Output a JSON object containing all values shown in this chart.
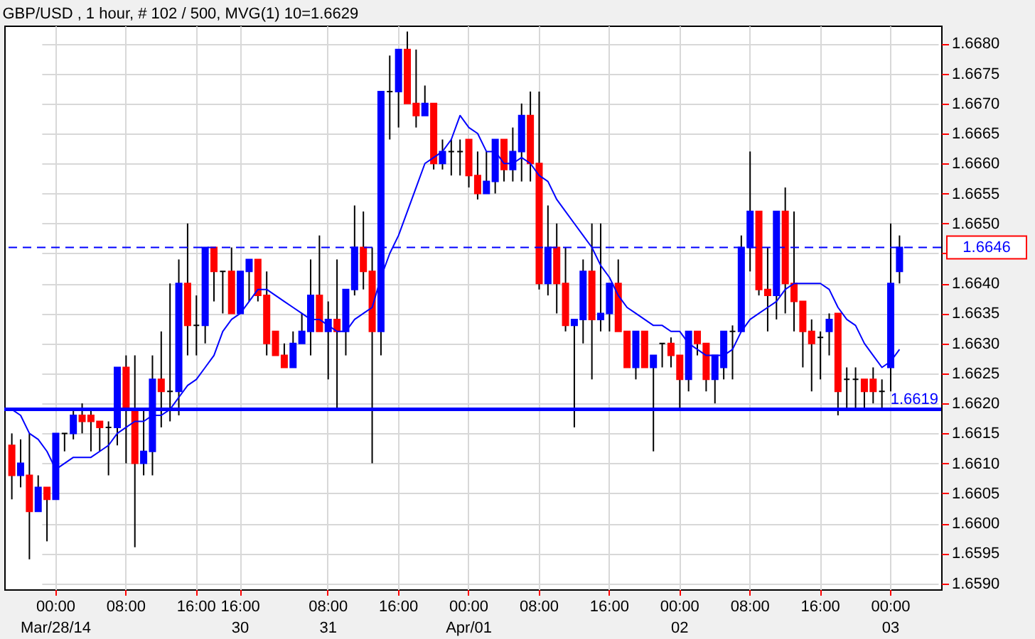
{
  "chart_data": {
    "type": "candlestick",
    "title": "GBP/USD , 1 hour, # 102 / 500, MVG(1) 10=1.6629",
    "categories": [
      null,
      null,
      null,
      null,
      null,
      "00:00\nMar/28/14",
      null,
      null,
      null,
      null,
      null,
      null,
      null,
      "08:00",
      null,
      null,
      null,
      null,
      null,
      null,
      null,
      "16:00",
      null,
      null,
      null,
      null,
      "16:00\n30",
      null,
      null,
      null,
      null,
      null,
      null,
      null,
      null,
      null,
      "08:00\n31",
      null,
      null,
      null,
      null,
      null,
      null,
      null,
      "16:00",
      null,
      null,
      null,
      null,
      null,
      null,
      null,
      "00:00\nApr/01",
      null,
      null,
      null,
      null,
      null,
      null,
      null,
      "08:00",
      null,
      null,
      null,
      null,
      null,
      null,
      null,
      "16:00",
      null,
      null,
      null,
      null,
      null,
      null,
      null,
      "00:00\n02",
      null,
      null,
      null,
      null,
      null,
      null,
      null,
      "08:00",
      null,
      null,
      null,
      null,
      null,
      null,
      null,
      "16:00",
      null,
      null,
      null,
      null,
      null,
      null,
      null,
      "00:00\n03",
      null
    ],
    "ohlc": [
      [
        1.6613,
        1.6615,
        1.6604,
        1.6608
      ],
      [
        1.6608,
        1.6614,
        1.6606,
        1.661
      ],
      [
        1.6608,
        1.6615,
        1.6594,
        1.6602
      ],
      [
        1.6602,
        1.6608,
        1.6602,
        1.6606
      ],
      [
        1.6606,
        1.6606,
        1.6597,
        1.6604
      ],
      [
        1.6604,
        1.6615,
        1.6604,
        1.6615
      ],
      [
        1.6615,
        1.6615,
        1.6612,
        1.6615
      ],
      [
        1.6615,
        1.6619,
        1.6614,
        1.6618
      ],
      [
        1.6618,
        1.662,
        1.6615,
        1.6617
      ],
      [
        1.6618,
        1.6619,
        1.6612,
        1.6617
      ],
      [
        1.6617,
        1.6617,
        1.6612,
        1.6616
      ],
      [
        1.6616,
        1.6617,
        1.6608,
        1.6616
      ],
      [
        1.6616,
        1.6626,
        1.6613,
        1.6626
      ],
      [
        1.6626,
        1.6628,
        1.661,
        1.6619
      ],
      [
        1.6619,
        1.6628,
        1.6596,
        1.661
      ],
      [
        1.661,
        1.6619,
        1.6608,
        1.6612
      ],
      [
        1.6612,
        1.6628,
        1.6608,
        1.6624
      ],
      [
        1.6624,
        1.6632,
        1.6616,
        1.6622
      ],
      [
        1.6622,
        1.664,
        1.6617,
        1.6622
      ],
      [
        1.6622,
        1.6644,
        1.6618,
        1.664
      ],
      [
        1.664,
        1.665,
        1.6628,
        1.6633
      ],
      [
        1.6633,
        1.6638,
        1.6628,
        1.6633
      ],
      [
        1.6633,
        1.6646,
        1.663,
        1.6646
      ],
      [
        1.6646,
        1.6646,
        1.6637,
        1.6642
      ],
      [
        1.6642,
        1.6642,
        1.6635,
        1.6642
      ],
      [
        1.6642,
        1.6646,
        1.6635,
        1.6635
      ],
      [
        1.6635,
        1.6642,
        1.6635,
        1.6642
      ],
      [
        1.6642,
        1.6644,
        1.6637,
        1.6644
      ],
      [
        1.6644,
        1.6644,
        1.6637,
        1.6638
      ],
      [
        1.6638,
        1.6642,
        1.6628,
        1.663
      ],
      [
        1.6632,
        1.6632,
        1.6628,
        1.6628
      ],
      [
        1.6628,
        1.663,
        1.6626,
        1.6626
      ],
      [
        1.6626,
        1.6632,
        1.6626,
        1.663
      ],
      [
        1.663,
        1.6635,
        1.663,
        1.6632
      ],
      [
        1.6632,
        1.6644,
        1.6628,
        1.6638
      ],
      [
        1.6638,
        1.6648,
        1.6632,
        1.6632
      ],
      [
        1.6632,
        1.6637,
        1.6624,
        1.6634
      ],
      [
        1.6634,
        1.6644,
        1.6619,
        1.6632
      ],
      [
        1.6632,
        1.6639,
        1.6628,
        1.6639
      ],
      [
        1.6639,
        1.6653,
        1.6638,
        1.6646
      ],
      [
        1.6646,
        1.6652,
        1.6639,
        1.6642
      ],
      [
        1.6642,
        1.6646,
        1.661,
        1.6632
      ],
      [
        1.6632,
        1.6672,
        1.6628,
        1.6672
      ],
      [
        1.6672,
        1.6678,
        1.6664,
        1.6672
      ],
      [
        1.6672,
        1.6679,
        1.6666,
        1.6679
      ],
      [
        1.6679,
        1.6682,
        1.667,
        1.667
      ],
      [
        1.667,
        1.6679,
        1.6666,
        1.6668
      ],
      [
        1.6668,
        1.6673,
        1.6668,
        1.667
      ],
      [
        1.667,
        1.667,
        1.6659,
        1.666
      ],
      [
        1.666,
        1.6664,
        1.6659,
        1.6662
      ],
      [
        1.6662,
        1.6664,
        1.6658,
        1.6662
      ],
      [
        1.6662,
        1.6664,
        1.6658,
        1.6662
      ],
      [
        1.6664,
        1.6664,
        1.6656,
        1.6658
      ],
      [
        1.6658,
        1.6662,
        1.6654,
        1.6655
      ],
      [
        1.6655,
        1.6662,
        1.6655,
        1.6657
      ],
      [
        1.6657,
        1.6664,
        1.6655,
        1.6664
      ],
      [
        1.6664,
        1.6664,
        1.6657,
        1.6659
      ],
      [
        1.6659,
        1.6666,
        1.6657,
        1.6662
      ],
      [
        1.6662,
        1.667,
        1.6657,
        1.6668
      ],
      [
        1.6668,
        1.6672,
        1.6657,
        1.666
      ],
      [
        1.666,
        1.6672,
        1.6639,
        1.664
      ],
      [
        1.664,
        1.6653,
        1.6638,
        1.6646
      ],
      [
        1.6646,
        1.665,
        1.6635,
        1.664
      ],
      [
        1.664,
        1.6646,
        1.6632,
        1.6633
      ],
      [
        1.6633,
        1.6634,
        1.6616,
        1.6634
      ],
      [
        1.6634,
        1.6644,
        1.663,
        1.6642
      ],
      [
        1.6642,
        1.665,
        1.6624,
        1.6634
      ],
      [
        1.6634,
        1.665,
        1.6632,
        1.6635
      ],
      [
        1.6635,
        1.664,
        1.6632,
        1.664
      ],
      [
        1.664,
        1.6644,
        1.6632,
        1.6632
      ],
      [
        1.6632,
        1.6632,
        1.6626,
        1.6626
      ],
      [
        1.6626,
        1.6632,
        1.6624,
        1.6632
      ],
      [
        1.6632,
        1.6632,
        1.6626,
        1.6626
      ],
      [
        1.6626,
        1.6628,
        1.6612,
        1.6628
      ],
      [
        1.663,
        1.663,
        1.6626,
        1.663
      ],
      [
        1.663,
        1.6631,
        1.6626,
        1.6628
      ],
      [
        1.6628,
        1.6628,
        1.6619,
        1.6624
      ],
      [
        1.6624,
        1.6632,
        1.6622,
        1.6632
      ],
      [
        1.6632,
        1.6632,
        1.6628,
        1.663
      ],
      [
        1.663,
        1.663,
        1.6622,
        1.6624
      ],
      [
        1.6624,
        1.6628,
        1.662,
        1.6628
      ],
      [
        1.6626,
        1.6632,
        1.6624,
        1.6632
      ],
      [
        1.6632,
        1.6633,
        1.6624,
        1.6632
      ],
      [
        1.6632,
        1.6648,
        1.6632,
        1.6646
      ],
      [
        1.6646,
        1.6662,
        1.6642,
        1.6652
      ],
      [
        1.6652,
        1.6652,
        1.6638,
        1.6639
      ],
      [
        1.6639,
        1.6646,
        1.6632,
        1.6638
      ],
      [
        1.6638,
        1.6652,
        1.6634,
        1.6652
      ],
      [
        1.6652,
        1.6656,
        1.6635,
        1.664
      ],
      [
        1.664,
        1.6652,
        1.6632,
        1.6637
      ],
      [
        1.6637,
        1.6637,
        1.6626,
        1.6632
      ],
      [
        1.6632,
        1.6634,
        1.6622,
        1.663
      ],
      [
        1.6631,
        1.6632,
        1.6624,
        1.6631
      ],
      [
        1.6632,
        1.6635,
        1.6628,
        1.6634
      ],
      [
        1.6635,
        1.6635,
        1.6618,
        1.6622
      ],
      [
        1.6624,
        1.6626,
        1.6619,
        1.6624
      ],
      [
        1.6624,
        1.6626,
        1.6619,
        1.6624
      ],
      [
        1.6624,
        1.6624,
        1.6619,
        1.6622
      ],
      [
        1.6624,
        1.6626,
        1.662,
        1.6622
      ],
      [
        1.6622,
        1.6624,
        1.6619,
        1.6622
      ],
      [
        1.6626,
        1.665,
        1.6622,
        1.664
      ],
      [
        1.6642,
        1.6648,
        1.664,
        1.6646
      ]
    ],
    "colors": [
      "#ff0000",
      "#0000ff",
      "#ff0000",
      "#0000ff",
      "#ff0000",
      "#0000ff",
      "#000000",
      "#0000ff",
      "#ff0000",
      "#ff0000",
      "#ff0000",
      "#000000",
      "#0000ff",
      "#ff0000",
      "#ff0000",
      "#0000ff",
      "#0000ff",
      "#ff0000",
      "#000000",
      "#0000ff",
      "#ff0000",
      "#000000",
      "#0000ff",
      "#ff0000",
      "#000000",
      "#ff0000",
      "#0000ff",
      "#0000ff",
      "#ff0000",
      "#ff0000",
      "#ff0000",
      "#ff0000",
      "#0000ff",
      "#0000ff",
      "#0000ff",
      "#ff0000",
      "#0000ff",
      "#ff0000",
      "#0000ff",
      "#0000ff",
      "#ff0000",
      "#ff0000",
      "#0000ff",
      "#000000",
      "#0000ff",
      "#ff0000",
      "#ff0000",
      "#0000ff",
      "#ff0000",
      "#0000ff",
      "#000000",
      "#000000",
      "#ff0000",
      "#ff0000",
      "#0000ff",
      "#0000ff",
      "#ff0000",
      "#0000ff",
      "#0000ff",
      "#ff0000",
      "#ff0000",
      "#0000ff",
      "#ff0000",
      "#ff0000",
      "#0000ff",
      "#0000ff",
      "#ff0000",
      "#0000ff",
      "#0000ff",
      "#ff0000",
      "#ff0000",
      "#0000ff",
      "#ff0000",
      "#0000ff",
      "#000000",
      "#ff0000",
      "#ff0000",
      "#0000ff",
      "#ff0000",
      "#ff0000",
      "#0000ff",
      "#0000ff",
      "#000000",
      "#0000ff",
      "#0000ff",
      "#ff0000",
      "#ff0000",
      "#0000ff",
      "#ff0000",
      "#ff0000",
      "#ff0000",
      "#ff0000",
      "#000000",
      "#0000ff",
      "#ff0000",
      "#000000",
      "#000000",
      "#ff0000",
      "#ff0000",
      "#000000",
      "#0000ff",
      "#0000ff"
    ],
    "series": [
      {
        "type": "line",
        "color": "#0000ff",
        "values": [
          1.6619,
          1.6618,
          1.6615,
          1.6614,
          1.6612,
          1.6609,
          1.661,
          1.6611,
          1.6611,
          1.6611,
          1.6612,
          1.6613,
          1.6615,
          1.6616,
          1.6617,
          1.6617,
          1.6618,
          1.6618,
          1.6619,
          1.6621,
          1.6623,
          1.6624,
          1.6626,
          1.6628,
          1.6632,
          1.6634,
          1.6635,
          1.6637,
          1.6639,
          1.6639,
          1.6638,
          1.6637,
          1.6636,
          1.6635,
          1.6634,
          1.6634,
          1.6633,
          1.6632,
          1.6632,
          1.6634,
          1.6635,
          1.6636,
          1.6641,
          1.6645,
          1.6648,
          1.6652,
          1.6656,
          1.666,
          1.6661,
          1.6662,
          1.6664,
          1.6668,
          1.6666,
          1.6665,
          1.6662,
          1.6662,
          1.666,
          1.666,
          1.6661,
          1.666,
          1.6658,
          1.6657,
          1.6654,
          1.6652,
          1.665,
          1.6648,
          1.6646,
          1.6643,
          1.6641,
          1.6638,
          1.6636,
          1.6635,
          1.6634,
          1.6633,
          1.6633,
          1.6632,
          1.6632,
          1.663,
          1.6629,
          1.6628,
          1.6628,
          1.6628,
          1.6629,
          1.6632,
          1.6634,
          1.6635,
          1.6636,
          1.6637,
          1.6639,
          1.664,
          1.664,
          1.664,
          1.664,
          1.6639,
          1.6636,
          1.6634,
          1.6633,
          1.663,
          1.6628,
          1.6626,
          1.6627,
          1.6629
        ]
      }
    ],
    "ylim": [
      1.6589,
      1.6683
    ],
    "yticks": [
      {
        "value": 1.659,
        "label": "1.6590"
      },
      {
        "value": 1.6595,
        "label": "1.6595"
      },
      {
        "value": 1.66,
        "label": "1.6600"
      },
      {
        "value": 1.6605,
        "label": "1.6605"
      },
      {
        "value": 1.661,
        "label": "1.6610"
      },
      {
        "value": 1.6615,
        "label": "1.6615"
      },
      {
        "value": 1.662,
        "label": "1.6620"
      },
      {
        "value": 1.6625,
        "label": "1.6625"
      },
      {
        "value": 1.663,
        "label": "1.6630"
      },
      {
        "value": 1.6635,
        "label": "1.6635"
      },
      {
        "value": 1.664,
        "label": "1.6640"
      },
      {
        "value": 1.6645,
        "label": null
      },
      {
        "value": 1.665,
        "label": "1.6650"
      },
      {
        "value": 1.6655,
        "label": "1.6655"
      },
      {
        "value": 1.666,
        "label": "1.6660"
      },
      {
        "value": 1.6665,
        "label": "1.6665"
      },
      {
        "value": 1.667,
        "label": "1.6670"
      },
      {
        "value": 1.6675,
        "label": "1.6675"
      },
      {
        "value": 1.668,
        "label": "1.6680"
      }
    ],
    "ref_lines": [
      {
        "axis": "y",
        "value": 1.6646,
        "label": "1.6646",
        "color": "#0000ff",
        "line_style": "dashed"
      },
      {
        "axis": "y",
        "value": 1.6619,
        "label": "1.6619",
        "color": "#0000ff",
        "line_style": "solid"
      }
    ],
    "grid": true
  }
}
